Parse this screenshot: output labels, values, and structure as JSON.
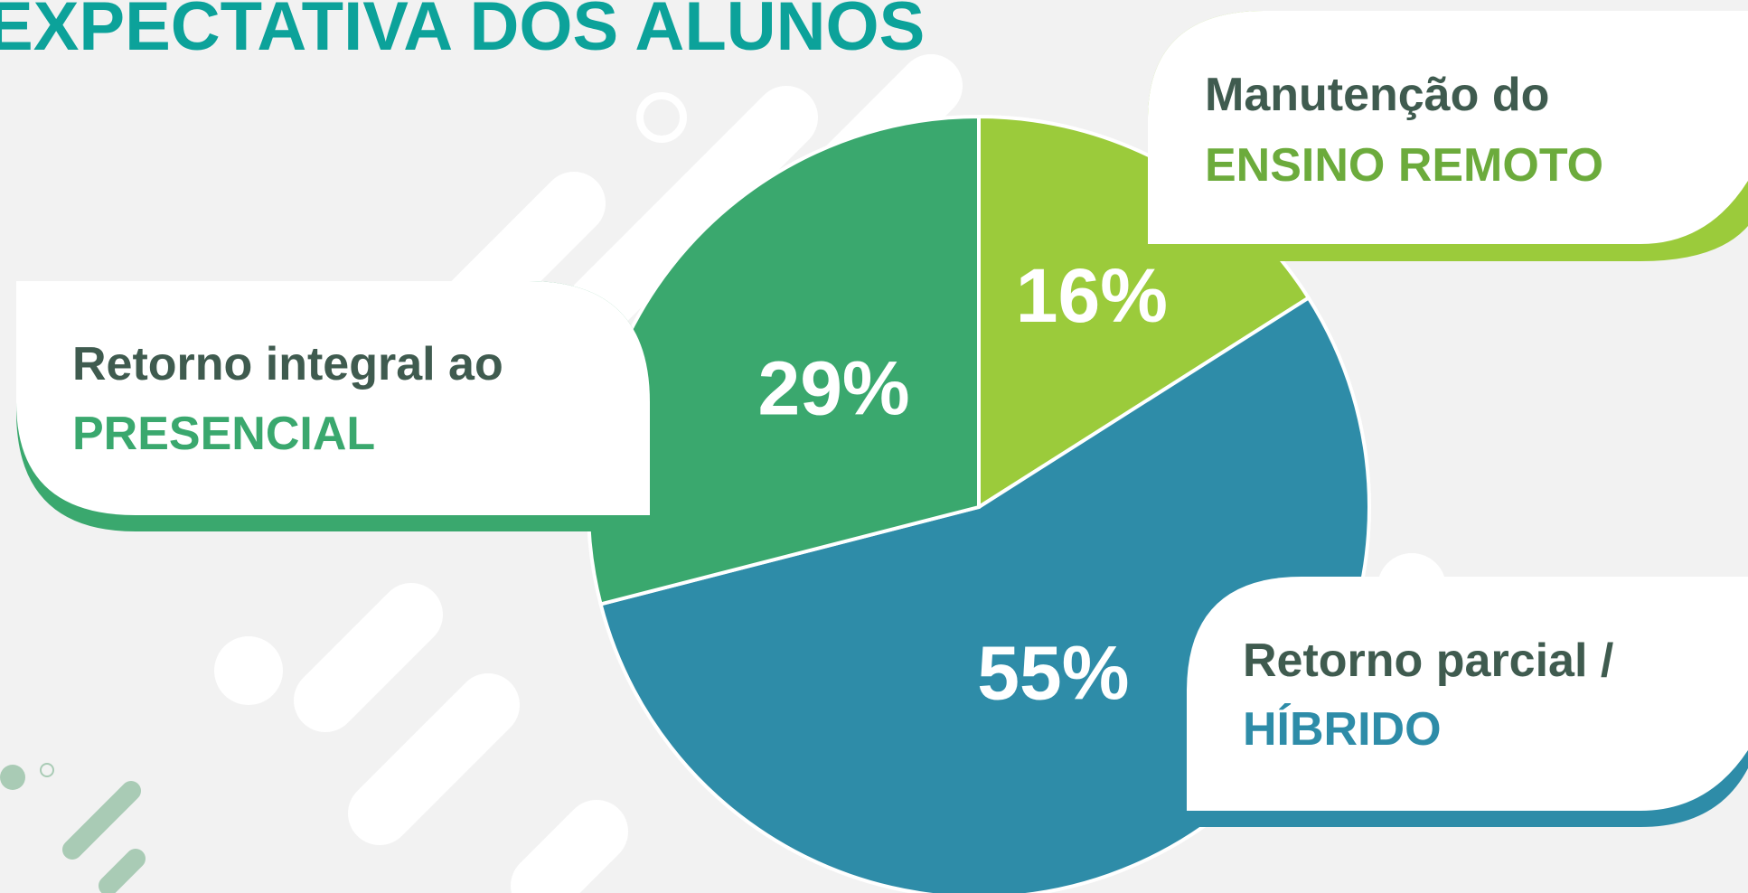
{
  "chart_data": {
    "type": "pie",
    "title": "EXPECTATIVA DOS ALUNOS",
    "categories": [
      "Manutenção do",
      "Retorno parcial /",
      "Retorno integral ao"
    ],
    "category_highlights": [
      "ENSINO REMOTO",
      "HÍBRIDO",
      "PRESENCIAL"
    ],
    "values": [
      16,
      55,
      29
    ],
    "value_labels": [
      "16%",
      "55%",
      "29%"
    ],
    "colors": [
      "#9bcb3b",
      "#2e8ca8",
      "#3aa86e"
    ]
  }
}
